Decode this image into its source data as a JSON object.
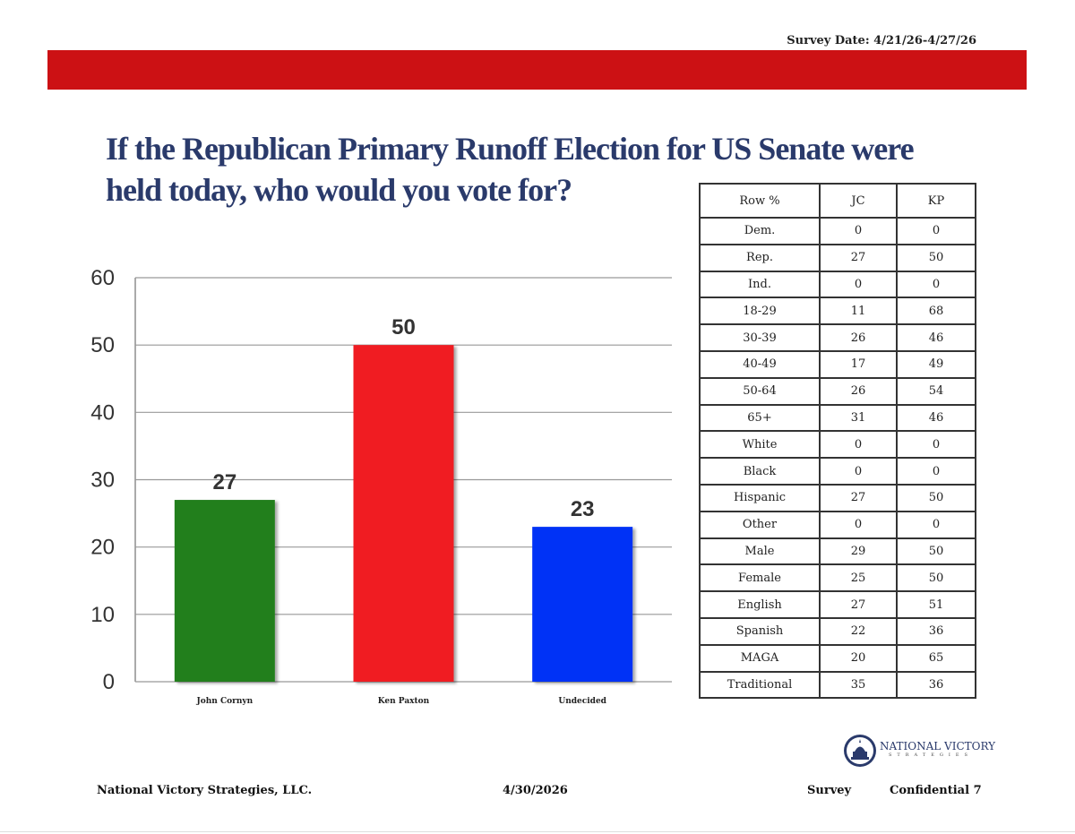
{
  "header": {
    "survey_date": "Survey Date: 4/21/26-4/27/26",
    "accent_color": "#cc1114"
  },
  "title": "If the Republican Primary Runoff Election for US Senate were held today, who would you vote for?",
  "chart_data": {
    "type": "bar",
    "categories": [
      "John Cornyn",
      "Ken Paxton",
      "Undecided"
    ],
    "values": [
      27,
      50,
      23
    ],
    "colors": [
      "#237f1c",
      "#f01c22",
      "#0632f6"
    ],
    "ylim": [
      0,
      60
    ],
    "yticks": [
      0,
      10,
      20,
      30,
      40,
      50,
      60
    ],
    "grid": true,
    "data_labels": true,
    "title": "",
    "xlabel": "",
    "ylabel": ""
  },
  "crosstab": {
    "headers": [
      "Row %",
      "JC",
      "KP"
    ],
    "rows": [
      [
        "Dem.",
        "0",
        "0"
      ],
      [
        "Rep.",
        "27",
        "50"
      ],
      [
        "Ind.",
        "0",
        "0"
      ],
      [
        "18-29",
        "11",
        "68"
      ],
      [
        "30-39",
        "26",
        "46"
      ],
      [
        "40-49",
        "17",
        "49"
      ],
      [
        "50-64",
        "26",
        "54"
      ],
      [
        "65+",
        "31",
        "46"
      ],
      [
        "White",
        "0",
        "0"
      ],
      [
        "Black",
        "0",
        "0"
      ],
      [
        "Hispanic",
        "27",
        "50"
      ],
      [
        "Other",
        "0",
        "0"
      ],
      [
        "Male",
        "29",
        "50"
      ],
      [
        "Female",
        "25",
        "50"
      ],
      [
        "English",
        "27",
        "51"
      ],
      [
        "Spanish",
        "22",
        "36"
      ],
      [
        "MAGA",
        "20",
        "65"
      ],
      [
        "Traditional",
        "35",
        "36"
      ]
    ]
  },
  "logo": {
    "name": "NATIONAL VICTORY",
    "sub": "STRATEGIES"
  },
  "footer": {
    "company": "National Victory Strategies, LLC.",
    "date": "4/30/2026",
    "label": "Survey",
    "page": "Confidential 7"
  }
}
